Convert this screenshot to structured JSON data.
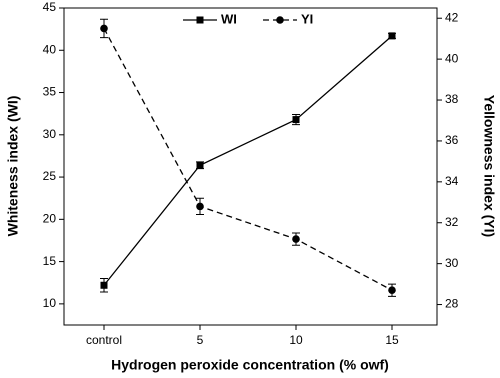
{
  "chart_data": {
    "type": "line",
    "xlabel": "Hydrogen peroxide concentration (% owf)",
    "ylabel": "Whiteness index (WI)",
    "y2label": "Yellowness index (YI)",
    "categories": [
      "control",
      "5",
      "10",
      "15"
    ],
    "series": [
      {
        "name": "WI",
        "color": "#000000",
        "marker": "square",
        "dashed": false,
        "values": [
          12.2,
          26.4,
          31.8,
          41.7
        ],
        "errors": [
          0.8,
          0.4,
          0.6,
          0.3
        ]
      },
      {
        "name": "YI",
        "color": "#000000",
        "marker": "circle",
        "dashed": true,
        "axis": "y2",
        "values": [
          41.5,
          32.8,
          31.2,
          28.7
        ],
        "errors": [
          0.45,
          0.4,
          0.3,
          0.3
        ]
      }
    ],
    "ylim": [
      7.5,
      45
    ],
    "yticks": [
      10,
      15,
      20,
      25,
      30,
      35,
      40,
      45
    ],
    "y2lim": [
      27,
      42.5
    ],
    "y2ticks": [
      28,
      30,
      32,
      34,
      36,
      38,
      40,
      42
    ],
    "legend": "top"
  }
}
